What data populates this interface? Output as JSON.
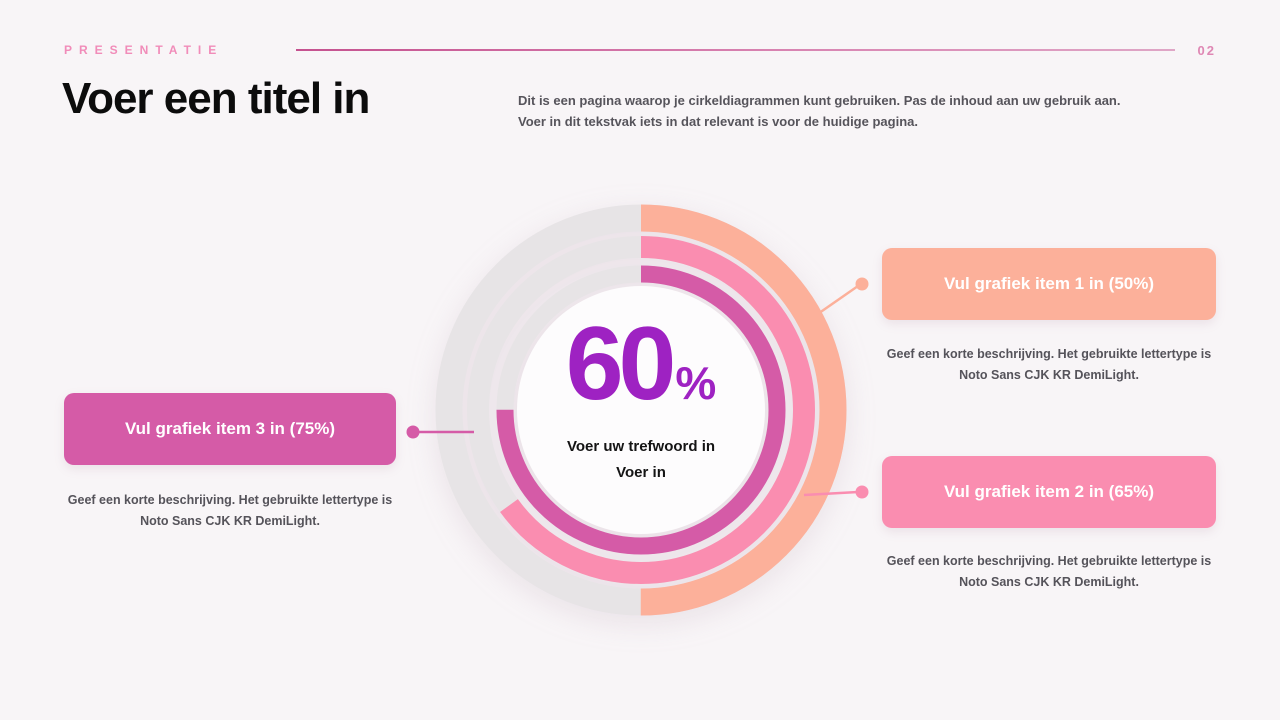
{
  "colors": {
    "background": "#f8f5f7",
    "accent_pink": "#f18cb9",
    "divider_start": "#c5518f",
    "divider_end": "#dfa6c6",
    "title_black": "#0c0c0c",
    "body_gray": "#56545b",
    "center_purple": "#9e22c2",
    "peach": "#fcb09a",
    "pink": "#fa8db0",
    "magenta": "#d55ba7",
    "track_gray": "#e7e4e6"
  },
  "header": {
    "eyebrow": "PRESENTATIE",
    "page_number": "02"
  },
  "title": "Voer een titel in",
  "intro": {
    "line1": "Dit is een pagina waarop je cirkeldiagrammen kunt gebruiken. Pas de inhoud aan uw gebruik aan.",
    "line2": "Voer in dit tekstvak iets in dat relevant is voor de huidige pagina."
  },
  "chart_data": {
    "type": "donut",
    "center_value": "60",
    "center_unit": "%",
    "center_label_line1": "Voer uw trefwoord in",
    "center_label_line2": "Voer in",
    "start_angle": "12-o-clock",
    "direction": "clockwise",
    "track_color": "#e7e4e6",
    "rings": [
      {
        "name": "Vul grafiek item 1 in",
        "value": 50,
        "color": "#fcb09a",
        "position": "outer"
      },
      {
        "name": "Vul grafiek item 2 in",
        "value": 65,
        "color": "#fa8db0",
        "position": "middle"
      },
      {
        "name": "Vul grafiek item 3 in",
        "value": 75,
        "color": "#d55ba7",
        "position": "inner"
      }
    ]
  },
  "items": [
    {
      "label": "Vul grafiek item 1 in (50%)",
      "value": 50,
      "color": "#fcb09a",
      "desc_line1": "Geef een korte beschrijving. Het gebruikte lettertype is",
      "desc_line2": "Noto Sans CJK KR DemiLight."
    },
    {
      "label": "Vul grafiek item 2 in (65%)",
      "value": 65,
      "color": "#fa8db0",
      "desc_line1": "Geef een korte beschrijving. Het gebruikte lettertype is",
      "desc_line2": "Noto Sans CJK KR DemiLight."
    },
    {
      "label": "Vul grafiek item 3 in (75%)",
      "value": 75,
      "color": "#d55ba7",
      "desc_line1": "Geef een korte beschrijving. Het gebruikte lettertype is",
      "desc_line2": "Noto Sans CJK KR DemiLight."
    }
  ]
}
